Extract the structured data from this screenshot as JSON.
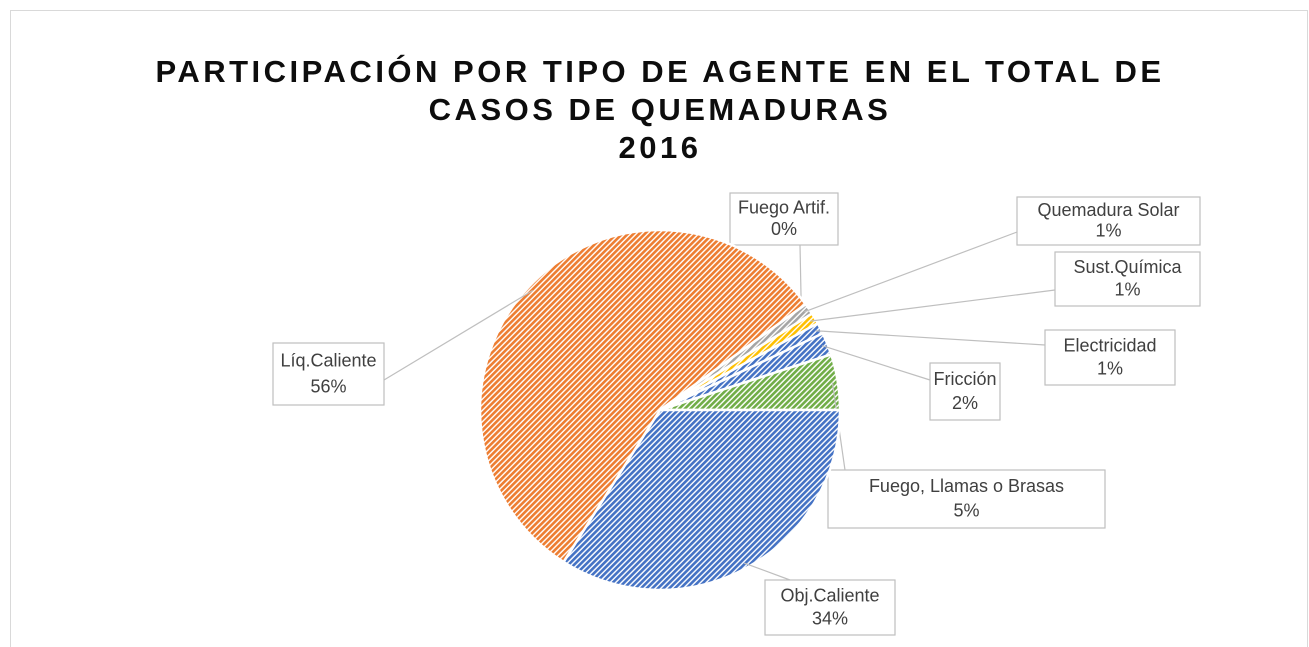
{
  "chart_data": {
    "type": "pie",
    "title": [
      "PARTICIPACIÓN POR TIPO DE AGENTE EN EL TOTAL DE",
      "CASOS DE QUEMADURAS",
      "2016"
    ],
    "categories": [
      "Fuego Artif.",
      "Quemadura Solar",
      "Sust.Química",
      "Electricidad",
      "Fricción",
      "Fuego, Llamas o Brasas",
      "Obj.Caliente",
      "Líq.Caliente"
    ],
    "values": [
      0,
      1,
      1,
      1,
      2,
      5,
      34,
      56
    ],
    "value_labels": [
      "0%",
      "1%",
      "1%",
      "1%",
      "2%",
      "5%",
      "34%",
      "56%"
    ],
    "colors": [
      "#ed7d31",
      "#a5a5a5",
      "#ffc000",
      "#4472c4",
      "#4472c4",
      "#70ad47",
      "#4472c4",
      "#ed7d31"
    ]
  }
}
